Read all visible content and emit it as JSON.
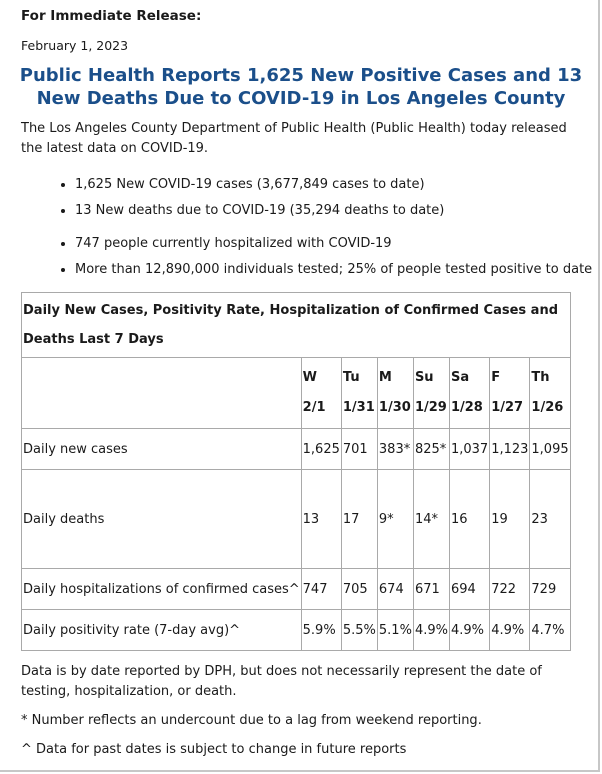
{
  "release_label": "For Immediate Release:",
  "date": "February 1, 2023",
  "headline": "Public Health Reports 1,625 New Positive Cases and 13 New Deaths Due to COVID-19 in Los Angeles County",
  "intro": "The Los Angeles County Department of Public Health (Public Health) today released the latest data on COVID-19.",
  "bullets": [
    "1,625 New COVID-19 cases (3,677,849 cases to date)",
    "13 New deaths due to COVID-19 (35,294 deaths to date)",
    "747 people currently hospitalized with COVID-19",
    "More than 12,890,000 individuals tested; 25% of people tested positive to date"
  ],
  "table": {
    "title": "Daily New Cases, Positivity Rate, Hospitalization of Confirmed Cases and Deaths Last 7 Days",
    "days": [
      {
        "dow": "W",
        "date": "2/1"
      },
      {
        "dow": "Tu",
        "date": "1/31"
      },
      {
        "dow": "M",
        "date": "1/30"
      },
      {
        "dow": "Su",
        "date": "1/29"
      },
      {
        "dow": "Sa",
        "date": "1/28"
      },
      {
        "dow": "F",
        "date": "1/27"
      },
      {
        "dow": "Th",
        "date": "1/26"
      }
    ],
    "rows": [
      {
        "label": "Daily new cases",
        "values": [
          "1,625",
          "701",
          "383*",
          "825*",
          "1,037",
          "1,123",
          "1,095"
        ]
      },
      {
        "label": "Daily deaths",
        "values": [
          "13",
          "17",
          "9*",
          "14*",
          "16",
          "19",
          "23"
        ]
      },
      {
        "label": "Daily hospitalizations of confirmed cases^",
        "values": [
          "747",
          "705",
          "674",
          "671",
          "694",
          "722",
          "729"
        ]
      },
      {
        "label": "Daily positivity rate (7-day avg)^",
        "values": [
          "5.9%",
          "5.5%",
          "5.1%",
          "4.9%",
          "4.9%",
          "4.9%",
          "4.7%"
        ]
      }
    ]
  },
  "notes": [
    "Data is by date reported by DPH, but does not necessarily represent the date of testing, hospitalization, or death.",
    "* Number reflects an undercount due to a lag from weekend reporting.",
    "^ Data for past dates is subject to change in future reports"
  ]
}
